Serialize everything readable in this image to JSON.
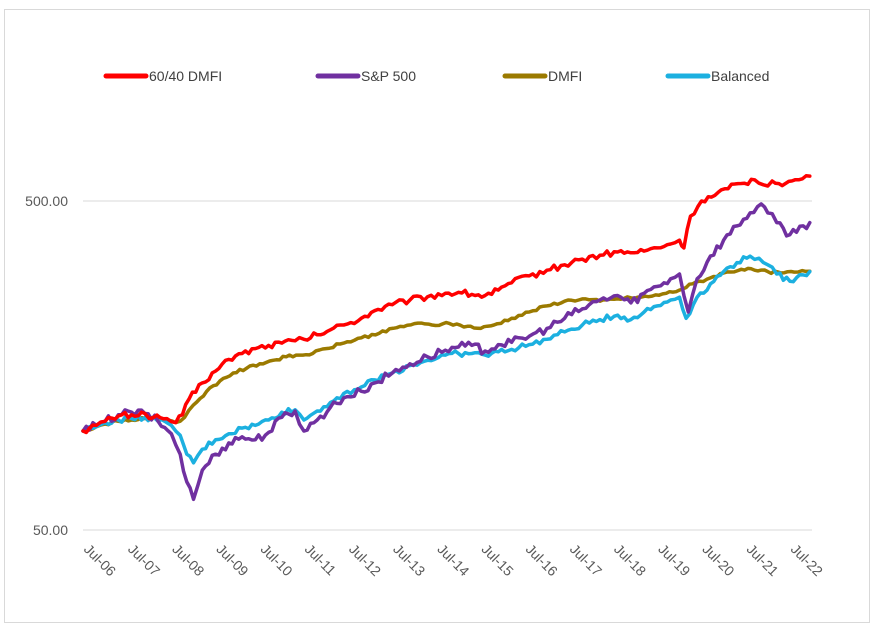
{
  "chart_data": {
    "type": "line",
    "title": "",
    "xlabel": "",
    "ylabel": "",
    "y_scale": "log",
    "ylim": [
      50,
      1000
    ],
    "y_ticks": [
      {
        "value": 50,
        "label": "50.00"
      },
      {
        "value": 500,
        "label": "500.00"
      }
    ],
    "x_range": [
      2006.5,
      2023.0
    ],
    "x_ticks": [
      {
        "value": 2006.5,
        "label": "Jul-06"
      },
      {
        "value": 2007.5,
        "label": "Jul-07"
      },
      {
        "value": 2008.5,
        "label": "Jul-08"
      },
      {
        "value": 2009.5,
        "label": "Jul-09"
      },
      {
        "value": 2010.5,
        "label": "Jul-10"
      },
      {
        "value": 2011.5,
        "label": "Jul-11"
      },
      {
        "value": 2012.5,
        "label": "Jul-12"
      },
      {
        "value": 2013.5,
        "label": "Jul-13"
      },
      {
        "value": 2014.5,
        "label": "Jul-14"
      },
      {
        "value": 2015.5,
        "label": "Jul-15"
      },
      {
        "value": 2016.5,
        "label": "Jul-16"
      },
      {
        "value": 2017.5,
        "label": "Jul-17"
      },
      {
        "value": 2018.5,
        "label": "Jul-18"
      },
      {
        "value": 2019.5,
        "label": "Jul-19"
      },
      {
        "value": 2020.5,
        "label": "Jul-20"
      },
      {
        "value": 2021.5,
        "label": "Jul-21"
      },
      {
        "value": 2022.5,
        "label": "Jul-22"
      }
    ],
    "grid": "horizontal",
    "legend_position": "top",
    "series": [
      {
        "name": "60/40 DMFI",
        "color": "#ff0000",
        "points": [
          [
            2006.5,
            100
          ],
          [
            2006.8,
            104
          ],
          [
            2007.0,
            107
          ],
          [
            2007.3,
            111
          ],
          [
            2007.6,
            112
          ],
          [
            2007.9,
            113
          ],
          [
            2008.1,
            110
          ],
          [
            2008.4,
            109
          ],
          [
            2008.6,
            106
          ],
          [
            2008.75,
            112
          ],
          [
            2008.9,
            125
          ],
          [
            2009.2,
            140
          ],
          [
            2009.5,
            152
          ],
          [
            2009.8,
            165
          ],
          [
            2010.1,
            172
          ],
          [
            2010.4,
            178
          ],
          [
            2010.7,
            182
          ],
          [
            2011.0,
            185
          ],
          [
            2011.3,
            188
          ],
          [
            2011.5,
            190
          ],
          [
            2011.8,
            196
          ],
          [
            2012.1,
            203
          ],
          [
            2012.4,
            210
          ],
          [
            2012.8,
            220
          ],
          [
            2013.1,
            232
          ],
          [
            2013.5,
            242
          ],
          [
            2013.9,
            250
          ],
          [
            2014.3,
            256
          ],
          [
            2014.7,
            262
          ],
          [
            2015.0,
            264
          ],
          [
            2015.3,
            260
          ],
          [
            2015.6,
            258
          ],
          [
            2015.9,
            268
          ],
          [
            2016.2,
            282
          ],
          [
            2016.6,
            296
          ],
          [
            2017.0,
            308
          ],
          [
            2017.4,
            320
          ],
          [
            2017.8,
            333
          ],
          [
            2018.2,
            342
          ],
          [
            2018.6,
            350
          ],
          [
            2018.9,
            348
          ],
          [
            2019.2,
            352
          ],
          [
            2019.5,
            360
          ],
          [
            2019.8,
            370
          ],
          [
            2020.0,
            380
          ],
          [
            2020.1,
            360
          ],
          [
            2020.25,
            450
          ],
          [
            2020.5,
            500
          ],
          [
            2020.8,
            520
          ],
          [
            2021.1,
            545
          ],
          [
            2021.4,
            565
          ],
          [
            2021.7,
            580
          ],
          [
            2021.9,
            560
          ],
          [
            2022.1,
            575
          ],
          [
            2022.4,
            565
          ],
          [
            2022.7,
            580
          ],
          [
            2022.95,
            595
          ]
        ]
      },
      {
        "name": "S&P 500",
        "color": "#7030a0",
        "points": [
          [
            2006.5,
            100
          ],
          [
            2006.8,
            104
          ],
          [
            2007.0,
            107
          ],
          [
            2007.3,
            112
          ],
          [
            2007.6,
            114
          ],
          [
            2007.9,
            113
          ],
          [
            2008.2,
            107
          ],
          [
            2008.5,
            98
          ],
          [
            2008.7,
            85
          ],
          [
            2008.85,
            70
          ],
          [
            2009.0,
            62
          ],
          [
            2009.2,
            76
          ],
          [
            2009.5,
            85
          ],
          [
            2009.8,
            92
          ],
          [
            2010.1,
            96
          ],
          [
            2010.4,
            94
          ],
          [
            2010.7,
            99
          ],
          [
            2011.0,
            110
          ],
          [
            2011.3,
            115
          ],
          [
            2011.5,
            100
          ],
          [
            2011.8,
            108
          ],
          [
            2012.1,
            118
          ],
          [
            2012.4,
            126
          ],
          [
            2012.8,
            132
          ],
          [
            2013.1,
            140
          ],
          [
            2013.5,
            150
          ],
          [
            2013.9,
            160
          ],
          [
            2014.3,
            168
          ],
          [
            2014.7,
            176
          ],
          [
            2015.0,
            180
          ],
          [
            2015.3,
            182
          ],
          [
            2015.6,
            175
          ],
          [
            2015.9,
            183
          ],
          [
            2016.2,
            186
          ],
          [
            2016.6,
            194
          ],
          [
            2017.0,
            205
          ],
          [
            2017.4,
            220
          ],
          [
            2017.8,
            235
          ],
          [
            2018.2,
            250
          ],
          [
            2018.6,
            258
          ],
          [
            2018.9,
            245
          ],
          [
            2019.2,
            262
          ],
          [
            2019.5,
            275
          ],
          [
            2019.8,
            290
          ],
          [
            2020.0,
            300
          ],
          [
            2020.2,
            230
          ],
          [
            2020.4,
            290
          ],
          [
            2020.7,
            340
          ],
          [
            2021.0,
            380
          ],
          [
            2021.3,
            420
          ],
          [
            2021.6,
            460
          ],
          [
            2021.85,
            490
          ],
          [
            2022.0,
            460
          ],
          [
            2022.2,
            430
          ],
          [
            2022.5,
            395
          ],
          [
            2022.8,
            420
          ],
          [
            2022.95,
            430
          ]
        ]
      },
      {
        "name": "DMFI",
        "color": "#9b7a00",
        "points": [
          [
            2006.5,
            100
          ],
          [
            2006.8,
            103
          ],
          [
            2007.0,
            105
          ],
          [
            2007.3,
            107
          ],
          [
            2007.6,
            108
          ],
          [
            2007.9,
            109
          ],
          [
            2008.1,
            110
          ],
          [
            2008.4,
            108
          ],
          [
            2008.6,
            106
          ],
          [
            2008.8,
            110
          ],
          [
            2009.0,
            120
          ],
          [
            2009.3,
            132
          ],
          [
            2009.6,
            142
          ],
          [
            2009.9,
            150
          ],
          [
            2010.2,
            155
          ],
          [
            2010.5,
            160
          ],
          [
            2010.8,
            164
          ],
          [
            2011.1,
            168
          ],
          [
            2011.4,
            170
          ],
          [
            2011.7,
            172
          ],
          [
            2012.0,
            178
          ],
          [
            2012.4,
            185
          ],
          [
            2012.8,
            192
          ],
          [
            2013.2,
            198
          ],
          [
            2013.6,
            206
          ],
          [
            2014.0,
            212
          ],
          [
            2014.4,
            210
          ],
          [
            2014.8,
            212
          ],
          [
            2015.2,
            208
          ],
          [
            2015.5,
            205
          ],
          [
            2015.8,
            210
          ],
          [
            2016.2,
            220
          ],
          [
            2016.6,
            230
          ],
          [
            2017.0,
            240
          ],
          [
            2017.4,
            248
          ],
          [
            2017.8,
            252
          ],
          [
            2018.2,
            248
          ],
          [
            2018.6,
            252
          ],
          [
            2018.9,
            254
          ],
          [
            2019.3,
            256
          ],
          [
            2019.7,
            262
          ],
          [
            2020.0,
            268
          ],
          [
            2020.3,
            280
          ],
          [
            2020.7,
            292
          ],
          [
            2021.0,
            302
          ],
          [
            2021.4,
            310
          ],
          [
            2021.7,
            308
          ],
          [
            2022.0,
            305
          ],
          [
            2022.3,
            302
          ],
          [
            2022.6,
            304
          ],
          [
            2022.95,
            306
          ]
        ]
      },
      {
        "name": "Balanced",
        "color": "#1cb0e0",
        "points": [
          [
            2006.5,
            100
          ],
          [
            2006.8,
            103
          ],
          [
            2007.0,
            106
          ],
          [
            2007.3,
            108
          ],
          [
            2007.6,
            109
          ],
          [
            2007.9,
            110
          ],
          [
            2008.2,
            107
          ],
          [
            2008.5,
            104
          ],
          [
            2008.7,
            97
          ],
          [
            2008.85,
            85
          ],
          [
            2009.0,
            80
          ],
          [
            2009.2,
            88
          ],
          [
            2009.5,
            94
          ],
          [
            2009.8,
            98
          ],
          [
            2010.1,
            102
          ],
          [
            2010.4,
            104
          ],
          [
            2010.7,
            108
          ],
          [
            2011.0,
            114
          ],
          [
            2011.3,
            116
          ],
          [
            2011.5,
            108
          ],
          [
            2011.8,
            115
          ],
          [
            2012.1,
            122
          ],
          [
            2012.4,
            130
          ],
          [
            2012.8,
            136
          ],
          [
            2013.1,
            143
          ],
          [
            2013.5,
            150
          ],
          [
            2013.9,
            158
          ],
          [
            2014.3,
            164
          ],
          [
            2014.7,
            170
          ],
          [
            2015.0,
            172
          ],
          [
            2015.3,
            172
          ],
          [
            2015.6,
            170
          ],
          [
            2015.9,
            174
          ],
          [
            2016.2,
            177
          ],
          [
            2016.6,
            183
          ],
          [
            2017.0,
            190
          ],
          [
            2017.4,
            200
          ],
          [
            2017.8,
            210
          ],
          [
            2018.2,
            218
          ],
          [
            2018.6,
            225
          ],
          [
            2018.9,
            218
          ],
          [
            2019.2,
            230
          ],
          [
            2019.5,
            240
          ],
          [
            2019.8,
            250
          ],
          [
            2020.0,
            255
          ],
          [
            2020.15,
            220
          ],
          [
            2020.4,
            255
          ],
          [
            2020.7,
            280
          ],
          [
            2021.0,
            305
          ],
          [
            2021.3,
            325
          ],
          [
            2021.6,
            340
          ],
          [
            2021.8,
            335
          ],
          [
            2022.0,
            320
          ],
          [
            2022.2,
            300
          ],
          [
            2022.5,
            285
          ],
          [
            2022.8,
            298
          ],
          [
            2022.95,
            305
          ]
        ]
      }
    ]
  }
}
